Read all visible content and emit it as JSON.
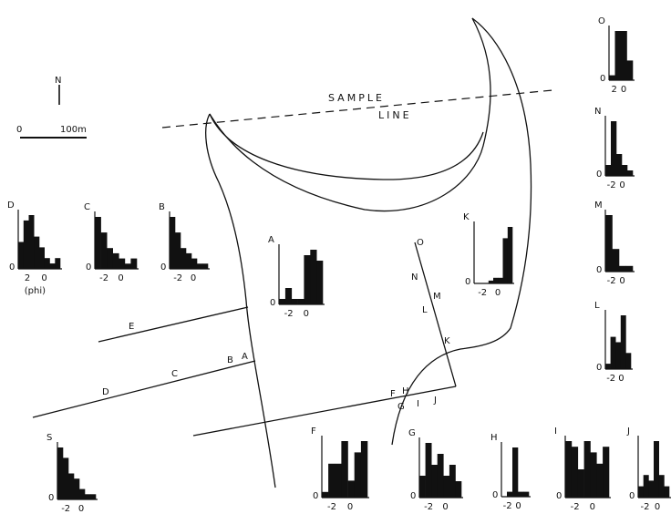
{
  "north": "N",
  "scale": {
    "zero": "0",
    "label": "100m"
  },
  "sample_line": [
    "SAMPLE",
    "LINE"
  ],
  "points": {
    "A": "A",
    "B": "B",
    "C": "C",
    "D": "D",
    "E": "E",
    "F": "F",
    "G": "G",
    "H": "H",
    "I": "I",
    "J": "J",
    "K": "K",
    "L": "L",
    "M": "M",
    "N": "N",
    "O": "O"
  },
  "chart_data": [
    {
      "type": "bar",
      "id": "D",
      "title": "D",
      "tick_labels": [
        "2",
        "0"
      ],
      "xlabel": "(phi)",
      "yorigin": "0",
      "values": [
        5,
        9,
        10,
        6,
        4,
        2,
        1,
        2
      ]
    },
    {
      "type": "bar",
      "id": "C",
      "title": "C",
      "tick_labels": [
        "-2",
        "0"
      ],
      "yorigin": "0",
      "values": [
        10,
        7,
        4,
        3,
        2,
        1,
        2
      ]
    },
    {
      "type": "bar",
      "id": "B",
      "title": "B",
      "tick_labels": [
        "-2",
        "0"
      ],
      "yorigin": "0",
      "values": [
        10,
        7,
        4,
        3,
        2,
        1,
        1
      ]
    },
    {
      "type": "bar",
      "id": "A",
      "title": "A",
      "tick_labels": [
        "-2",
        "0"
      ],
      "yorigin": "0",
      "values": [
        1,
        3,
        1,
        1,
        9,
        10,
        8
      ]
    },
    {
      "type": "bar",
      "id": "K",
      "title": "K",
      "tick_labels": [
        "-2",
        "0"
      ],
      "yorigin": "0",
      "values": [
        0,
        0,
        0,
        0.5,
        1,
        1,
        8,
        10
      ]
    },
    {
      "type": "bar",
      "id": "O",
      "title": "O",
      "tick_labels": [
        "2",
        "0"
      ],
      "yorigin": "0",
      "values": [
        1,
        10,
        10,
        4
      ]
    },
    {
      "type": "bar",
      "id": "N",
      "title": "N",
      "tick_labels": [
        "-2",
        "0"
      ],
      "yorigin": "0",
      "values": [
        2,
        10,
        4,
        2,
        1
      ]
    },
    {
      "type": "bar",
      "id": "M",
      "title": "M",
      "tick_labels": [
        "-2",
        "0"
      ],
      "yorigin": "0",
      "values": [
        10,
        4,
        1,
        1
      ]
    },
    {
      "type": "bar",
      "id": "L",
      "title": "L",
      "tick_labels": [
        "-2",
        "0"
      ],
      "yorigin": "0",
      "values": [
        1,
        6,
        5,
        10,
        3
      ]
    },
    {
      "type": "bar",
      "id": "S",
      "title": "S",
      "tick_labels": [
        "-2",
        "0"
      ],
      "yorigin": "0",
      "values": [
        10,
        8,
        5,
        4,
        2,
        1,
        1
      ]
    },
    {
      "type": "bar",
      "id": "F",
      "title": "F",
      "tick_labels": [
        "-2",
        "0"
      ],
      "yorigin": "0",
      "values": [
        1,
        6,
        6,
        10,
        3,
        8,
        10
      ]
    },
    {
      "type": "bar",
      "id": "G",
      "title": "G",
      "tick_labels": [
        "-2",
        "0"
      ],
      "yorigin": "0",
      "values": [
        4,
        10,
        6,
        8,
        4,
        6,
        3
      ]
    },
    {
      "type": "bar",
      "id": "H",
      "title": "H",
      "tick_labels": [
        "-2",
        "0"
      ],
      "yorigin": "0",
      "values": [
        0,
        1,
        10,
        1,
        1
      ]
    },
    {
      "type": "bar",
      "id": "I",
      "title": "I",
      "tick_labels": [
        "-2",
        "0"
      ],
      "yorigin": "0",
      "values": [
        10,
        9,
        5,
        10,
        8,
        6,
        9
      ]
    },
    {
      "type": "bar",
      "id": "J",
      "title": "J",
      "tick_labels": [
        "-2",
        "0"
      ],
      "yorigin": "0",
      "values": [
        2,
        4,
        3,
        10,
        4,
        2
      ]
    }
  ]
}
